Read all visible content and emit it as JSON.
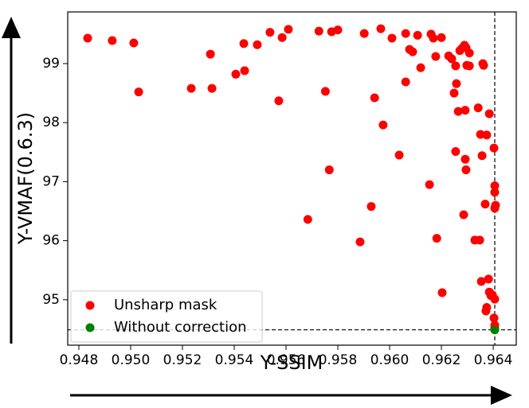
{
  "chart_data": {
    "type": "scatter",
    "x_label": "Y-SSIM",
    "y_label": "Y-VMAF(0.6.3)",
    "xlim": [
      0.94757,
      0.96489
    ],
    "ylim": [
      94.23,
      99.875
    ],
    "xticks": [
      0.948,
      {
        "value": 0.95,
        "label": "0.950"
      },
      0.952,
      0.954,
      0.956,
      0.958,
      {
        "value": 0.96,
        "label": "0.960"
      },
      0.962,
      0.964
    ],
    "yticks": [
      95,
      96,
      97,
      98,
      99
    ],
    "reference_lines": {
      "x": 0.96406,
      "y": 94.49
    },
    "legend": "lower left",
    "series": [
      {
        "name": "Unsharp mask",
        "color": "#ff0000",
        "x": [
          0.94834,
          0.94929,
          0.95012,
          0.95031,
          0.95234,
          0.95308,
          0.95314,
          0.95406,
          0.95437,
          0.9544,
          0.95489,
          0.95538,
          0.95585,
          0.95609,
          0.95572,
          0.95684,
          0.95767,
          0.95727,
          0.95752,
          0.95776,
          0.958,
          0.95886,
          0.95902,
          0.95929,
          0.95942,
          0.95966,
          0.95975,
          0.96009,
          0.96037,
          0.96062,
          0.96062,
          0.96077,
          0.96089,
          0.96108,
          0.9612,
          0.96154,
          0.9616,
          0.96169,
          0.96178,
          0.96182,
          0.962,
          0.96203,
          0.96228,
          0.9624,
          0.96249,
          0.96255,
          0.96255,
          0.96258,
          0.96265,
          0.96271,
          0.9628,
          0.96286,
          0.96289,
          0.96295,
          0.96292,
          0.96292,
          0.96295,
          0.96298,
          0.96308,
          0.96308,
          0.96329,
          0.96342,
          0.96348,
          0.96351,
          0.96354,
          0.96357,
          0.9636,
          0.96363,
          0.96369,
          0.96375,
          0.96372,
          0.96375,
          0.96382,
          0.96385,
          0.96385,
          0.96391,
          0.96397,
          0.96403,
          0.96406,
          0.96406,
          0.96406,
          0.96409,
          0.96403,
          0.96406,
          0.96406,
          0.96406
        ],
        "y": [
          99.43,
          99.39,
          99.35,
          98.52,
          98.58,
          99.16,
          98.58,
          98.82,
          99.34,
          98.88,
          99.32,
          99.53,
          99.44,
          99.58,
          98.37,
          96.36,
          97.2,
          99.55,
          98.53,
          99.54,
          99.57,
          95.98,
          99.51,
          96.58,
          98.42,
          99.59,
          97.96,
          99.43,
          97.45,
          98.69,
          99.51,
          99.24,
          99.2,
          99.48,
          98.93,
          96.95,
          99.5,
          99.43,
          99.12,
          96.04,
          99.44,
          95.12,
          99.13,
          99.08,
          98.5,
          98.96,
          97.51,
          98.66,
          98.19,
          99.22,
          99.26,
          96.44,
          99.31,
          97.2,
          97.38,
          98.21,
          99.27,
          98.97,
          99.18,
          98.96,
          96.01,
          98.25,
          96.01,
          97.8,
          95.31,
          97.44,
          99.0,
          98.97,
          96.62,
          97.79,
          94.81,
          94.87,
          95.35,
          98.15,
          95.13,
          95.07,
          95.08,
          97.57,
          96.93,
          96.82,
          96.55,
          96.6,
          94.69,
          95.01,
          94.57,
          94.52
        ]
      },
      {
        "name": "Without correction",
        "color": "#008000",
        "x": [
          0.96406
        ],
        "y": [
          94.49
        ]
      }
    ]
  }
}
